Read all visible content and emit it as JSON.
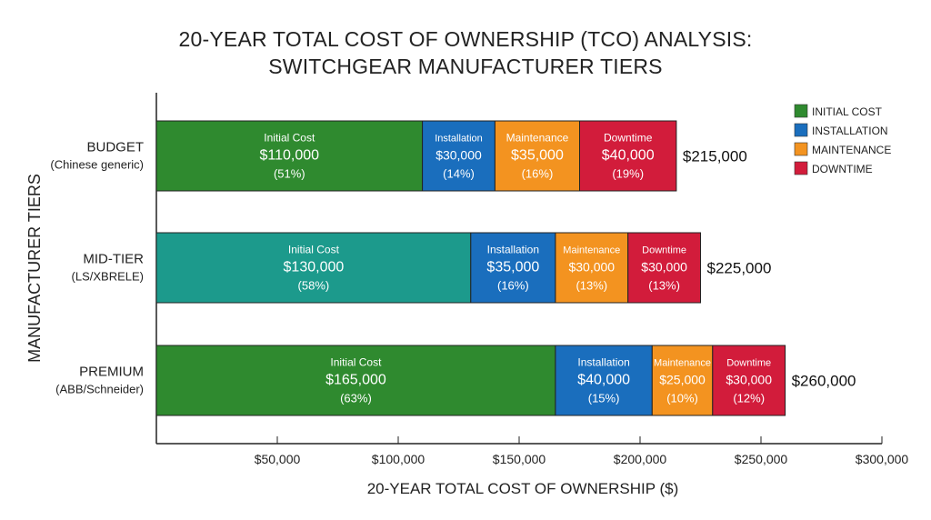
{
  "chart_data": {
    "type": "bar",
    "orientation": "horizontal",
    "stacked": true,
    "title_line1": "20-YEAR TOTAL COST OF OWNERSHIP (TCO) ANALYSIS:",
    "title_line2": "SWITCHGEAR MANUFACTURER TIERS",
    "xlabel": "20-YEAR TOTAL COST OF OWNERSHIP ($)",
    "ylabel": "MANUFACTURER TIERS",
    "xlim": [
      0,
      300000
    ],
    "xticks": [
      50000,
      100000,
      150000,
      200000,
      250000,
      300000
    ],
    "xtick_labels": [
      "$50,000",
      "$100,000",
      "$150,000",
      "$200,000",
      "$250,000",
      "$300,000"
    ],
    "grid": false,
    "legend_position": "top-right",
    "legend": [
      "INITIAL COST",
      "INSTALLATION",
      "MAINTENANCE",
      "DOWNTIME"
    ],
    "colors": {
      "initial": "#2f8a2f",
      "initial_midtier": "#1c9a8c",
      "installation": "#1a6ebd",
      "maintenance": "#f39320",
      "downtime": "#d21c3b"
    },
    "categories": [
      {
        "name": "BUDGET",
        "sub": "(Chinese generic)",
        "total_label": "$215,000"
      },
      {
        "name": "MID-TIER",
        "sub": "(LS/XBRELE)",
        "total_label": "$225,000"
      },
      {
        "name": "PREMIUM",
        "sub": "(ABB/Schneider)",
        "total_label": "$260,000"
      }
    ],
    "series": [
      {
        "name": "Initial Cost",
        "values": [
          110000,
          130000,
          165000
        ],
        "value_labels": [
          "$110,000",
          "$130,000",
          "$165,000"
        ],
        "pct_labels": [
          "(51%)",
          "(58%)",
          "(63%)"
        ]
      },
      {
        "name": "Installation",
        "values": [
          30000,
          35000,
          40000
        ],
        "value_labels": [
          "$30,000",
          "$35,000",
          "$40,000"
        ],
        "pct_labels": [
          "(14%)",
          "(16%)",
          "(15%)"
        ]
      },
      {
        "name": "Maintenance",
        "values": [
          35000,
          30000,
          25000
        ],
        "value_labels": [
          "$35,000",
          "$30,000",
          "$25,000"
        ],
        "pct_labels": [
          "(16%)",
          "(13%)",
          "(10%)"
        ]
      },
      {
        "name": "Downtime",
        "values": [
          40000,
          30000,
          30000
        ],
        "value_labels": [
          "$40,000",
          "$30,000",
          "$30,000"
        ],
        "pct_labels": [
          "(19%)",
          "(13%)",
          "(12%)"
        ]
      }
    ]
  }
}
